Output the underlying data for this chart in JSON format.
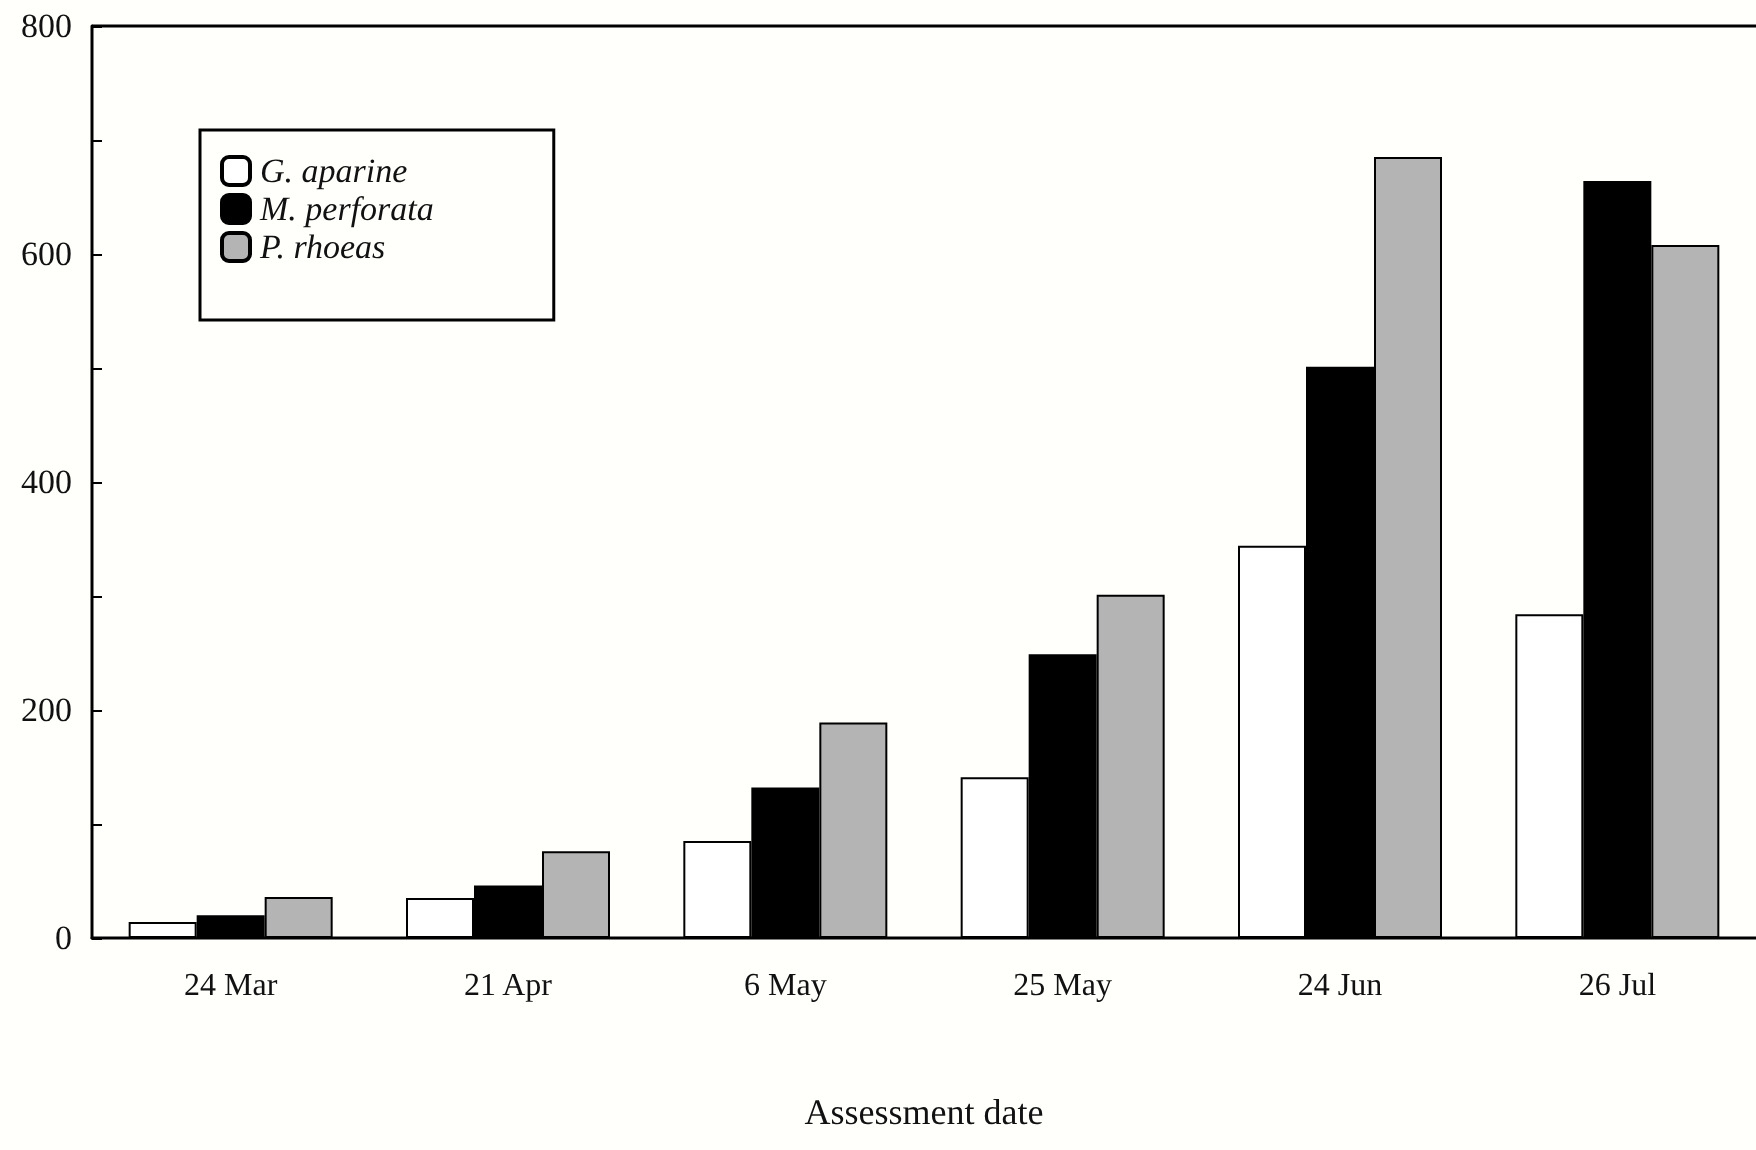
{
  "chart_data": {
    "type": "bar",
    "xlabel": "Assessment date",
    "categories": [
      "24 Mar",
      "21 Apr",
      "6 May",
      "25 May",
      "24 Jun",
      "26 Jul"
    ],
    "series": [
      {
        "name": "G. aparine",
        "color": "#ffffff",
        "values": [
          14,
          35,
          85,
          141,
          344,
          284
        ]
      },
      {
        "name": "M. perforata",
        "color": "#000000",
        "values": [
          20,
          46,
          132,
          249,
          501,
          664
        ]
      },
      {
        "name": "P. rhoeas",
        "color": "#b4b4b4",
        "values": [
          36,
          76,
          189,
          301,
          685,
          608
        ]
      }
    ],
    "ylim": [
      0,
      800
    ],
    "yticks": [
      0,
      {
        "value": 100,
        "label": null
      },
      200,
      {
        "value": 300,
        "label": null
      },
      400,
      {
        "value": 500,
        "label": null
      },
      600,
      {
        "value": 700,
        "label": null
      },
      800
    ],
    "grid": false,
    "legend": "top left"
  }
}
